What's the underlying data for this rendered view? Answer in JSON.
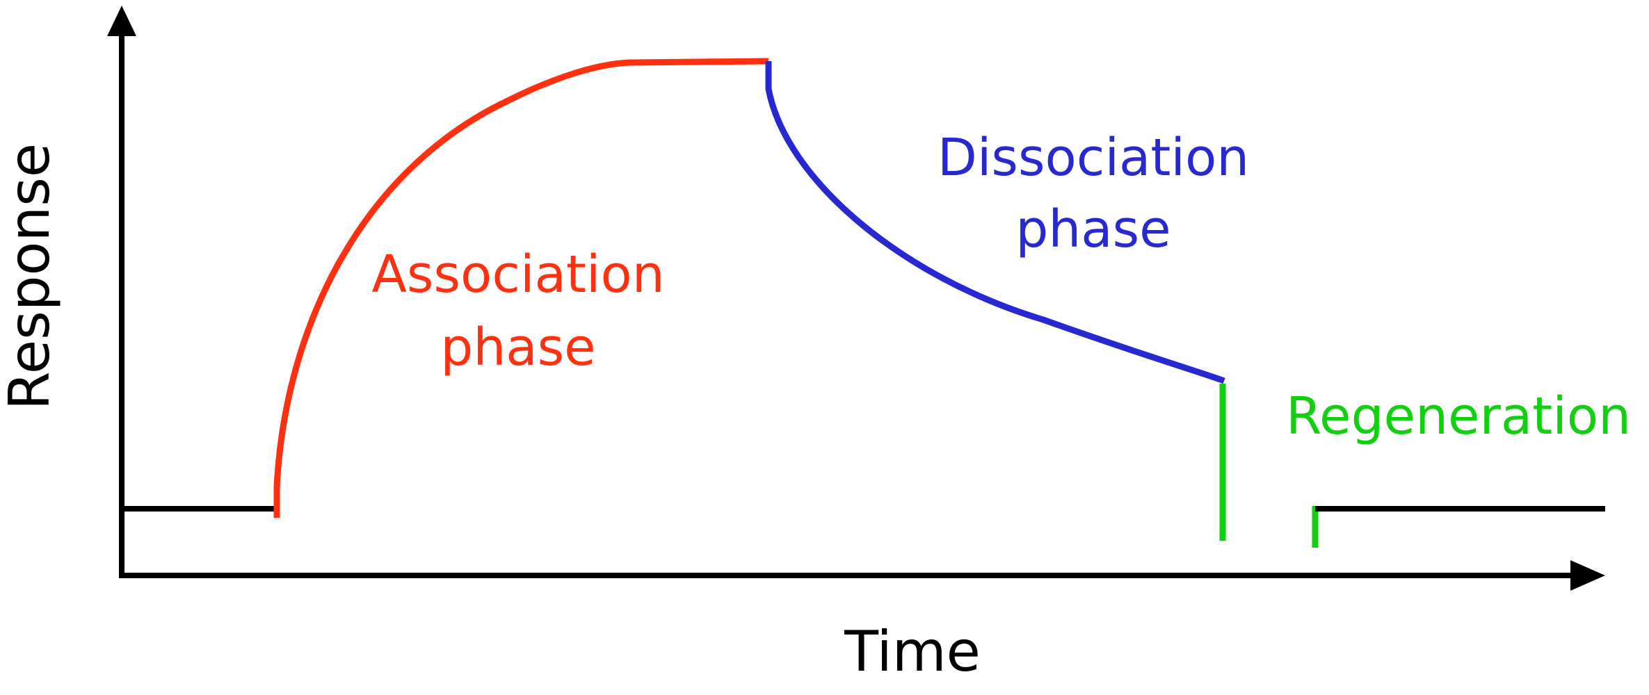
{
  "diagram": {
    "axes": {
      "x_label": "Time",
      "y_label": "Response"
    },
    "phases": {
      "association": {
        "line1": "Association",
        "line2": "phase",
        "color": "#ff3010"
      },
      "dissociation": {
        "line1": "Dissociation",
        "line2": "phase",
        "color": "#2828d2"
      },
      "regeneration": {
        "label": "Regeneration",
        "color": "#10d010"
      }
    }
  }
}
